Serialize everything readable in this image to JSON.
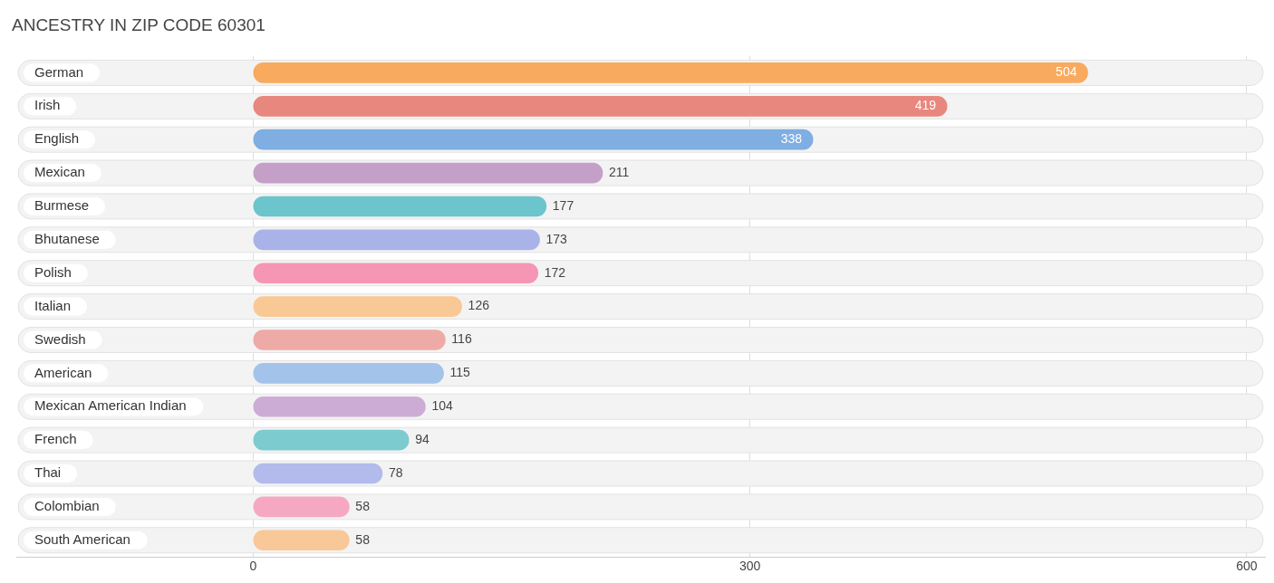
{
  "chart_data": {
    "type": "bar",
    "orientation": "horizontal",
    "title": "ANCESTRY IN ZIP CODE 60301",
    "categories": [
      "German",
      "Irish",
      "English",
      "Mexican",
      "Burmese",
      "Bhutanese",
      "Polish",
      "Italian",
      "Swedish",
      "American",
      "Mexican American Indian",
      "French",
      "Thai",
      "Colombian",
      "South American"
    ],
    "values": [
      504,
      419,
      338,
      211,
      177,
      173,
      172,
      126,
      116,
      115,
      104,
      94,
      78,
      58,
      58
    ],
    "colors": [
      "#f8aa5e",
      "#e8877d",
      "#7eaee2",
      "#c4a0c8",
      "#6cc4cc",
      "#a9b3e8",
      "#f596b4",
      "#f9c995",
      "#eeaaa6",
      "#a3c3ea",
      "#ccacd4",
      "#7ccbcf",
      "#b3baec",
      "#f6a8c2",
      "#f9c898"
    ],
    "xlim": [
      -143,
      611
    ],
    "xticks": [
      0,
      300,
      600
    ],
    "grid": "x",
    "legend": false,
    "data_labels": true
  }
}
